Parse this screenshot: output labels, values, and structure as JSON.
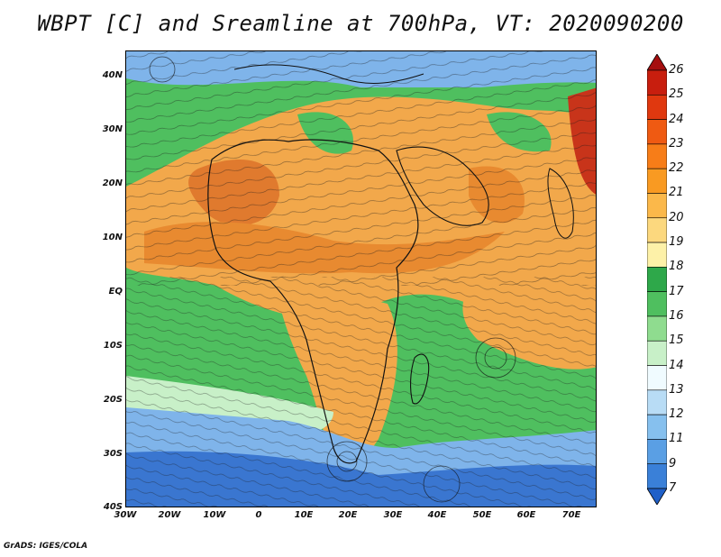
{
  "title": "WBPT [C] and Sreamline at 700hPa, VT: 2020090200",
  "credit": "GrADS: IGES/COLA",
  "lat_labels": [
    "40N",
    "30N",
    "20N",
    "10N",
    "EQ",
    "10S",
    "20S",
    "30S",
    "40S"
  ],
  "lon_labels": [
    "30W",
    "20W",
    "10W",
    "0",
    "10E",
    "20E",
    "30E",
    "40E",
    "50E",
    "60E",
    "70E"
  ],
  "colorbar": {
    "labels": [
      "26",
      "25",
      "24",
      "23",
      "22",
      "21",
      "20",
      "19",
      "18",
      "17",
      "16",
      "15",
      "14",
      "13",
      "12",
      "11",
      "9",
      "7"
    ],
    "colors": [
      "#a50f0f",
      "#c81e0e",
      "#e0380f",
      "#ef5a12",
      "#f77d18",
      "#f99a22",
      "#fbb84a",
      "#fcd87e",
      "#fdf1a8",
      "#2ea84a",
      "#4fbf5f",
      "#8fdc8f",
      "#c8f0c8",
      "#f0fbff",
      "#b8dcf5",
      "#86c0ee",
      "#5a9fe4",
      "#3a80d8",
      "#2060c8"
    ]
  },
  "colors": {
    "warm": "#f2a84b",
    "hot": "#d8642a",
    "green": "#4fbf5f",
    "cool": "#7fb4ea",
    "cold": "#3a76d0"
  }
}
